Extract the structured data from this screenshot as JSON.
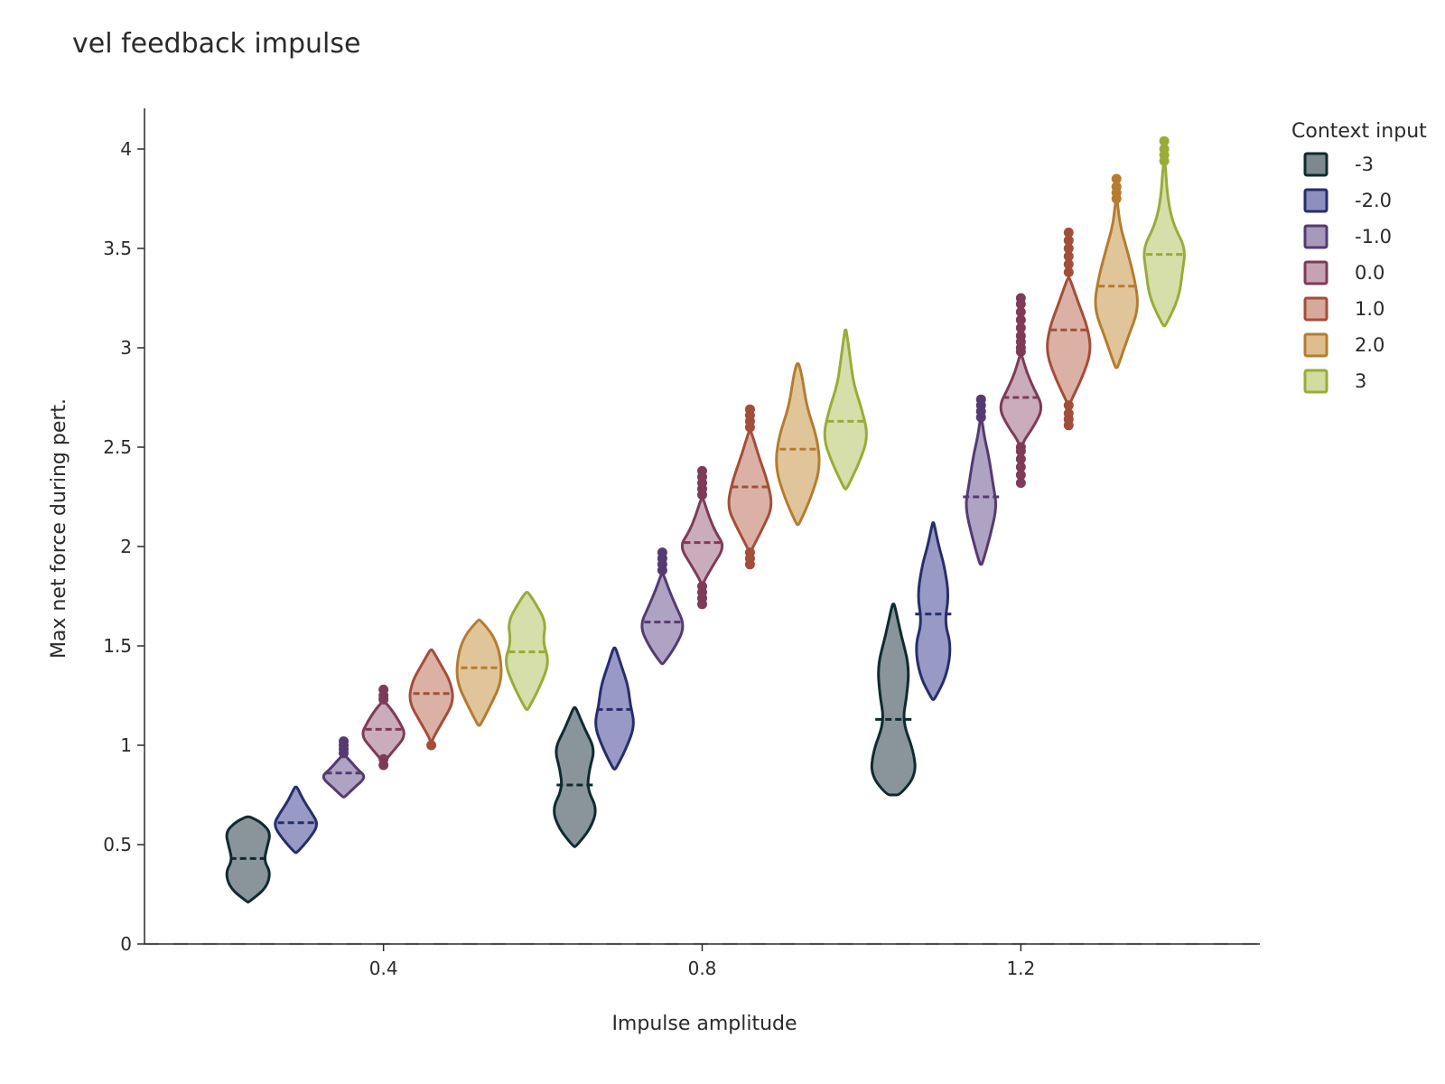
{
  "chart_data": {
    "type": "violin",
    "title": "vel feedback impulse",
    "xlabel": "Impulse amplitude",
    "ylabel": "Max net force during pert.",
    "xlim": [
      0.1,
      1.5
    ],
    "ylim": [
      0,
      4.25
    ],
    "x_ticks": [
      0.4,
      0.8,
      1.2
    ],
    "x_tick_labels": [
      "0.4",
      "0.8",
      "1.2"
    ],
    "y_ticks": [
      0,
      0.5,
      1,
      1.5,
      2,
      2.5,
      3,
      3.5,
      4
    ],
    "y_tick_labels": [
      "0",
      "0.5",
      "1",
      "1.5",
      "2",
      "2.5",
      "3",
      "3.5",
      "4"
    ],
    "legend_title": "Context input",
    "legend_position": "top-right",
    "zero_line": "dashed",
    "series": [
      {
        "name": "-3",
        "color": "#0f2a30",
        "fill": "#7c8a90",
        "violins": [
          {
            "x": 0.23,
            "min": 0.21,
            "max": 0.64,
            "median": 0.43,
            "outliers": [],
            "shape": [
              [
                0.21,
                0.02
              ],
              [
                0.28,
                0.8
              ],
              [
                0.36,
                1.0
              ],
              [
                0.42,
                0.7
              ],
              [
                0.49,
                0.85
              ],
              [
                0.56,
                1.0
              ],
              [
                0.61,
                0.6
              ],
              [
                0.64,
                0.1
              ]
            ]
          },
          {
            "x": 0.64,
            "min": 0.49,
            "max": 1.19,
            "median": 0.8,
            "outliers": [],
            "shape": [
              [
                0.49,
                0.05
              ],
              [
                0.58,
                0.7
              ],
              [
                0.68,
                1.0
              ],
              [
                0.78,
                0.55
              ],
              [
                0.88,
                0.65
              ],
              [
                0.98,
                0.9
              ],
              [
                1.08,
                0.45
              ],
              [
                1.19,
                0.05
              ]
            ]
          },
          {
            "x": 1.04,
            "min": 0.75,
            "max": 1.71,
            "median": 1.13,
            "outliers": [],
            "shape": [
              [
                0.75,
                0.3
              ],
              [
                0.85,
                1.0
              ],
              [
                0.97,
                0.9
              ],
              [
                1.12,
                0.4
              ],
              [
                1.25,
                0.6
              ],
              [
                1.4,
                0.7
              ],
              [
                1.55,
                0.35
              ],
              [
                1.71,
                0.05
              ]
            ]
          }
        ]
      },
      {
        "name": "-2.0",
        "color": "#272d6c",
        "fill": "#8d8fbf",
        "violins": [
          {
            "x": 0.29,
            "min": 0.46,
            "max": 0.79,
            "median": 0.61,
            "outliers": [],
            "shape": [
              [
                0.46,
                0.05
              ],
              [
                0.53,
                0.6
              ],
              [
                0.6,
                1.0
              ],
              [
                0.66,
                0.7
              ],
              [
                0.72,
                0.35
              ],
              [
                0.79,
                0.05
              ]
            ]
          },
          {
            "x": 0.69,
            "min": 0.88,
            "max": 1.49,
            "median": 1.18,
            "outliers": [],
            "shape": [
              [
                0.88,
                0.05
              ],
              [
                0.98,
                0.5
              ],
              [
                1.1,
                0.9
              ],
              [
                1.2,
                0.7
              ],
              [
                1.3,
                0.6
              ],
              [
                1.4,
                0.3
              ],
              [
                1.49,
                0.05
              ]
            ]
          },
          {
            "x": 1.09,
            "min": 1.23,
            "max": 2.12,
            "median": 1.66,
            "outliers": [],
            "shape": [
              [
                1.23,
                0.05
              ],
              [
                1.35,
                0.6
              ],
              [
                1.5,
                0.8
              ],
              [
                1.62,
                0.5
              ],
              [
                1.75,
                0.7
              ],
              [
                1.9,
                0.5
              ],
              [
                2.0,
                0.25
              ],
              [
                2.12,
                0.03
              ]
            ]
          }
        ]
      },
      {
        "name": "-1.0",
        "color": "#553a72",
        "fill": "#a699bd",
        "violins": [
          {
            "x": 0.35,
            "min": 0.74,
            "max": 0.95,
            "median": 0.86,
            "outliers": [
              0.96,
              0.98,
              1.0,
              1.02
            ],
            "shape": [
              [
                0.74,
                0.05
              ],
              [
                0.79,
                0.5
              ],
              [
                0.84,
                1.0
              ],
              [
                0.88,
                0.6
              ],
              [
                0.92,
                0.3
              ],
              [
                0.95,
                0.05
              ]
            ]
          },
          {
            "x": 0.75,
            "min": 1.41,
            "max": 1.86,
            "median": 1.62,
            "outliers": [
              1.88,
              1.91,
              1.94,
              1.97
            ],
            "shape": [
              [
                1.41,
                0.05
              ],
              [
                1.5,
                0.6
              ],
              [
                1.6,
                1.0
              ],
              [
                1.7,
                0.6
              ],
              [
                1.78,
                0.3
              ],
              [
                1.86,
                0.05
              ]
            ]
          },
          {
            "x": 1.15,
            "min": 1.91,
            "max": 2.63,
            "median": 2.25,
            "outliers": [
              2.65,
              2.68,
              2.71,
              2.74
            ],
            "shape": [
              [
                1.91,
                0.05
              ],
              [
                2.05,
                0.4
              ],
              [
                2.2,
                0.7
              ],
              [
                2.3,
                0.55
              ],
              [
                2.45,
                0.35
              ],
              [
                2.55,
                0.15
              ],
              [
                2.63,
                0.05
              ]
            ]
          }
        ]
      },
      {
        "name": "0.0",
        "color": "#7e3b58",
        "fill": "#c4a3b3",
        "violins": [
          {
            "x": 0.4,
            "min": 0.9,
            "max": 1.22,
            "median": 1.08,
            "outliers": [
              0.9,
              0.93,
              1.23,
              1.25,
              1.28
            ],
            "shape": [
              [
                0.92,
                0.05
              ],
              [
                0.98,
                0.5
              ],
              [
                1.05,
                1.0
              ],
              [
                1.12,
                0.7
              ],
              [
                1.18,
                0.35
              ],
              [
                1.22,
                0.05
              ]
            ]
          },
          {
            "x": 0.8,
            "min": 1.79,
            "max": 2.24,
            "median": 2.02,
            "outliers": [
              1.71,
              1.74,
              1.77,
              1.8,
              2.26,
              2.29,
              2.32,
              2.35,
              2.38
            ],
            "shape": [
              [
                1.82,
                0.05
              ],
              [
                1.9,
                0.45
              ],
              [
                2.0,
                1.0
              ],
              [
                2.07,
                0.6
              ],
              [
                2.15,
                0.3
              ],
              [
                2.24,
                0.05
              ]
            ]
          },
          {
            "x": 1.2,
            "min": 2.45,
            "max": 2.96,
            "median": 2.75,
            "outliers": [
              2.32,
              2.36,
              2.4,
              2.44,
              2.48,
              2.5,
              2.98,
              3.0,
              3.03,
              3.06,
              3.1,
              3.14,
              3.18,
              3.22,
              3.25
            ],
            "shape": [
              [
                2.52,
                0.05
              ],
              [
                2.6,
                0.55
              ],
              [
                2.7,
                1.0
              ],
              [
                2.8,
                0.55
              ],
              [
                2.88,
                0.25
              ],
              [
                2.96,
                0.05
              ]
            ]
          }
        ]
      },
      {
        "name": "1.0",
        "color": "#a34e3a",
        "fill": "#d7a99b",
        "violins": [
          {
            "x": 0.46,
            "min": 1.0,
            "max": 1.48,
            "median": 1.26,
            "outliers": [
              1.0
            ],
            "shape": [
              [
                1.03,
                0.05
              ],
              [
                1.12,
                0.5
              ],
              [
                1.22,
                1.0
              ],
              [
                1.32,
                0.85
              ],
              [
                1.4,
                0.45
              ],
              [
                1.48,
                0.05
              ]
            ]
          },
          {
            "x": 0.86,
            "min": 1.96,
            "max": 2.58,
            "median": 2.3,
            "outliers": [
              1.91,
              1.94,
              1.97,
              2.6,
              2.63,
              2.66,
              2.69
            ],
            "shape": [
              [
                1.98,
                0.05
              ],
              [
                2.1,
                0.6
              ],
              [
                2.2,
                1.0
              ],
              [
                2.32,
                0.8
              ],
              [
                2.45,
                0.4
              ],
              [
                2.58,
                0.05
              ]
            ]
          },
          {
            "x": 1.26,
            "min": 2.7,
            "max": 3.35,
            "median": 3.09,
            "outliers": [
              2.61,
              2.64,
              2.67,
              2.71,
              3.38,
              3.42,
              3.46,
              3.5,
              3.54,
              3.58
            ],
            "shape": [
              [
                2.72,
                0.05
              ],
              [
                2.85,
                0.6
              ],
              [
                2.98,
                1.0
              ],
              [
                3.1,
                0.85
              ],
              [
                3.22,
                0.45
              ],
              [
                3.35,
                0.05
              ]
            ]
          }
        ]
      },
      {
        "name": "2.0",
        "color": "#b57c2f",
        "fill": "#ddbf8f",
        "violins": [
          {
            "x": 0.52,
            "min": 1.1,
            "max": 1.63,
            "median": 1.39,
            "outliers": [],
            "shape": [
              [
                1.1,
                0.05
              ],
              [
                1.2,
                0.5
              ],
              [
                1.32,
                1.0
              ],
              [
                1.45,
                0.95
              ],
              [
                1.55,
                0.65
              ],
              [
                1.63,
                0.05
              ]
            ]
          },
          {
            "x": 0.92,
            "min": 2.11,
            "max": 2.92,
            "median": 2.49,
            "outliers": [],
            "shape": [
              [
                2.11,
                0.05
              ],
              [
                2.25,
                0.6
              ],
              [
                2.4,
                1.0
              ],
              [
                2.55,
                0.85
              ],
              [
                2.7,
                0.4
              ],
              [
                2.85,
                0.2
              ],
              [
                2.92,
                0.05
              ]
            ]
          },
          {
            "x": 1.32,
            "min": 2.9,
            "max": 3.73,
            "median": 3.31,
            "outliers": [
              3.75,
              3.78,
              3.81,
              3.85
            ],
            "shape": [
              [
                2.9,
                0.05
              ],
              [
                3.05,
                0.5
              ],
              [
                3.2,
                1.0
              ],
              [
                3.35,
                0.8
              ],
              [
                3.5,
                0.45
              ],
              [
                3.62,
                0.15
              ],
              [
                3.73,
                0.05
              ]
            ]
          }
        ]
      },
      {
        "name": "3",
        "color": "#9aab38",
        "fill": "#d2dba0",
        "violins": [
          {
            "x": 0.58,
            "min": 1.18,
            "max": 1.77,
            "median": 1.47,
            "outliers": [],
            "shape": [
              [
                1.18,
                0.05
              ],
              [
                1.3,
                0.6
              ],
              [
                1.42,
                1.0
              ],
              [
                1.52,
                0.7
              ],
              [
                1.62,
                0.85
              ],
              [
                1.72,
                0.35
              ],
              [
                1.77,
                0.05
              ]
            ]
          },
          {
            "x": 0.98,
            "min": 2.29,
            "max": 3.09,
            "median": 2.63,
            "outliers": [],
            "shape": [
              [
                2.29,
                0.05
              ],
              [
                2.42,
                0.6
              ],
              [
                2.55,
                1.0
              ],
              [
                2.68,
                0.75
              ],
              [
                2.82,
                0.35
              ],
              [
                2.95,
                0.2
              ],
              [
                3.09,
                0.03
              ]
            ]
          },
          {
            "x": 1.38,
            "min": 3.11,
            "max": 3.92,
            "median": 3.47,
            "outliers": [
              3.94,
              3.97,
              4.0,
              4.04
            ],
            "shape": [
              [
                3.11,
                0.05
              ],
              [
                3.25,
                0.65
              ],
              [
                3.38,
                0.8
              ],
              [
                3.5,
                0.95
              ],
              [
                3.62,
                0.4
              ],
              [
                3.75,
                0.15
              ],
              [
                3.92,
                0.05
              ]
            ]
          }
        ]
      }
    ]
  }
}
